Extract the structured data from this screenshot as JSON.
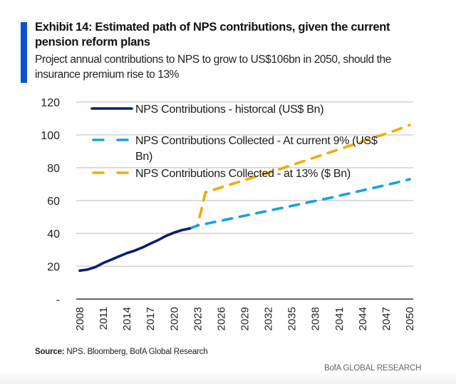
{
  "header": {
    "title": "Exhibit 14: Estimated path of NPS contributions, given the current pension reform plans",
    "subtitle": "Project annual contributions to NPS to grow to US$106bn in 2050, should the insurance premium rise to 13%"
  },
  "footer": {
    "source_label": "Source:",
    "source_text": " NPS. Bloomberg, BofA Global Research",
    "brand": "BofA GLOBAL RESEARCH"
  },
  "colors": {
    "accent": "#0B50D2",
    "historical": "#0C1F6E",
    "current_9": "#1AA0E0",
    "at_13": "#F5A800",
    "grid": "#c8c8c8",
    "axis": "#333333"
  },
  "chart_data": {
    "type": "line",
    "title": "Exhibit 14: Estimated path of NPS contributions, given the current pension reform plans",
    "xlabel": "",
    "ylabel": "",
    "xlim": [
      2008,
      2050
    ],
    "ylim": [
      0,
      120
    ],
    "grid": true,
    "legend_position": "top-left",
    "y_ticks": [
      0,
      20,
      40,
      60,
      80,
      100,
      120
    ],
    "y_tick_labels": [
      "-",
      "20",
      "40",
      "60",
      "80",
      "100",
      "120"
    ],
    "x_ticks": [
      2008,
      2011,
      2014,
      2017,
      2020,
      2023,
      2026,
      2029,
      2032,
      2035,
      2038,
      2041,
      2044,
      2047,
      2050
    ],
    "x_tick_labels": [
      "2008",
      "2011",
      "2014",
      "2017",
      "2020",
      "2023",
      "2026",
      "2029",
      "2032",
      "2035",
      "2038",
      "2041",
      "2044",
      "2047",
      "2050"
    ],
    "series": [
      {
        "name": "NPS Contributions - historcal (US$ Bn)",
        "style": "solid",
        "color_key": "historical",
        "x": [
          2008,
          2009,
          2010,
          2011,
          2012,
          2013,
          2014,
          2015,
          2016,
          2017,
          2018,
          2019,
          2020,
          2021,
          2022
        ],
        "values": [
          17.3,
          18.0,
          19.5,
          22.0,
          24.0,
          26.0,
          28.0,
          29.5,
          31.5,
          33.8,
          36.0,
          38.5,
          40.5,
          42.0,
          43.0
        ]
      },
      {
        "name": "NPS Contributions Collected - At current 9% (US$ Bn)",
        "style": "dashed",
        "color_key": "current_9",
        "x": [
          2022,
          2023,
          2024,
          2025,
          2026,
          2027,
          2028,
          2029,
          2030,
          2031,
          2032,
          2033,
          2034,
          2035,
          2036,
          2037,
          2038,
          2039,
          2040,
          2041,
          2042,
          2043,
          2044,
          2045,
          2046,
          2047,
          2048,
          2049,
          2050
        ],
        "values": [
          43.0,
          44.8,
          45.8,
          46.8,
          47.8,
          48.8,
          49.8,
          50.8,
          51.8,
          52.8,
          53.8,
          54.8,
          55.8,
          56.8,
          57.8,
          58.8,
          59.8,
          60.8,
          61.8,
          62.9,
          64.0,
          65.1,
          66.2,
          67.3,
          68.4,
          69.5,
          70.6,
          71.8,
          73.0
        ]
      },
      {
        "name": "NPS Contributions Collected - at 13% ($ Bn)",
        "style": "dashed",
        "color_key": "at_13",
        "x": [
          2022,
          2023,
          2024,
          2025,
          2026,
          2027,
          2028,
          2029,
          2030,
          2031,
          2032,
          2033,
          2034,
          2035,
          2036,
          2037,
          2038,
          2039,
          2040,
          2041,
          2042,
          2043,
          2044,
          2045,
          2046,
          2047,
          2048,
          2049,
          2050
        ],
        "values": [
          43.0,
          44.8,
          65.0,
          66.5,
          68.0,
          69.5,
          71.0,
          72.5,
          74.0,
          75.5,
          77.0,
          78.5,
          80.0,
          81.6,
          83.2,
          84.8,
          86.4,
          88.0,
          89.6,
          91.2,
          92.8,
          94.4,
          96.0,
          97.6,
          99.2,
          100.8,
          102.4,
          104.2,
          106.0
        ]
      }
    ]
  }
}
